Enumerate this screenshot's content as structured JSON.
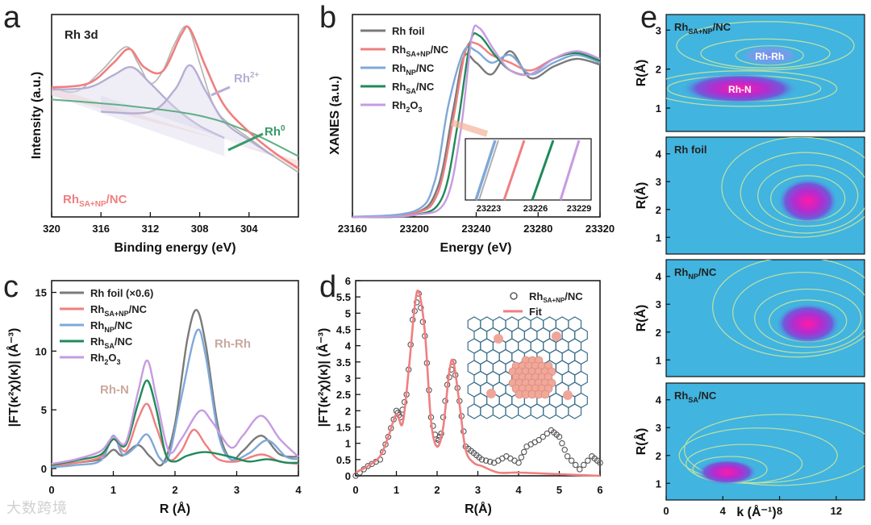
{
  "watermark": "大数跨境",
  "colors": {
    "gray": "#7a7a7a",
    "red": "#ef7f7f",
    "blue": "#7fa8d8",
    "green": "#1f8a5a",
    "purple": "#c79be0",
    "xpsRaw": "#b3b3b3",
    "xpsFit": "#ef7f7f",
    "rh3plus": "#b6aed2",
    "rh0": "#3a9a6a",
    "contourBg": "#41b4e0"
  },
  "panels": {
    "a": {
      "letter": "a",
      "label": "Rh 3d",
      "sample": "Rh",
      "sample_sub": "SA+NP",
      "sample_tail": "/NC",
      "ann_rh3": "Rh",
      "ann_rh3_sup": "2+",
      "ann_rh0": "Rh",
      "ann_rh0_sup": "0"
    },
    "b": {
      "letter": "b",
      "inset_ticks": [
        "23223",
        "23226",
        "23229"
      ]
    },
    "c": {
      "letter": "c",
      "ann_rhrh": "Rh-Rh",
      "ann_rhn": "Rh-N"
    },
    "d": {
      "letter": "d",
      "legend": [
        {
          "main": "Rh",
          "sub": "SA+NP",
          "tail": "/NC"
        },
        {
          "main": "Fit",
          "sub": "",
          "tail": ""
        }
      ]
    },
    "e": {
      "letter": "e",
      "maps": [
        {
          "title_main": "Rh",
          "title_sub": "SA+NP",
          "title_tail": "/NC",
          "labels": [
            "Rh-Rh",
            "Rh-N"
          ]
        },
        {
          "title_main": "Rh foil",
          "title_sub": "",
          "title_tail": "",
          "labels": []
        },
        {
          "title_main": "Rh",
          "title_sub": "NP",
          "title_tail": "/NC",
          "labels": []
        },
        {
          "title_main": "Rh",
          "title_sub": "SA",
          "title_tail": "/NC",
          "labels": []
        }
      ],
      "ylabel": "R(Å)",
      "xlabel": "k (Å⁻¹)",
      "xticks": [
        0,
        4,
        8,
        12
      ]
    }
  },
  "chart_data": [
    {
      "id": "a",
      "type": "line",
      "title": "Rh 3d",
      "xlabel": "Binding energy (eV)",
      "ylabel": "Intensity (a.u.)",
      "xlim": [
        320,
        300
      ],
      "xticks": [
        320,
        316,
        312,
        308,
        304
      ],
      "series": [
        {
          "name": "Rh 3d",
          "x": [
            320,
            318,
            316,
            314,
            313,
            312,
            311,
            310,
            309,
            308,
            307,
            306,
            304,
            302,
            300
          ],
          "y": [
            0.64,
            0.62,
            0.72,
            0.84,
            0.76,
            0.66,
            0.72,
            0.86,
            0.94,
            0.76,
            0.57,
            0.48,
            0.39,
            0.3,
            0.22
          ]
        },
        {
          "name": "Rh",
          "x": [
            320,
            317,
            315,
            313.5,
            312,
            310,
            308,
            306
          ],
          "y": [
            0.63,
            0.64,
            0.7,
            0.74,
            0.66,
            0.54,
            0.45,
            0.39
          ]
        },
        {
          "name": "Rh",
          "x": [
            316,
            312,
            310,
            308.8,
            307.5,
            306,
            304,
            302
          ],
          "y": [
            0.52,
            0.52,
            0.63,
            0.75,
            0.62,
            0.47,
            0.38,
            0.3
          ]
        }
      ]
    },
    {
      "id": "b",
      "type": "line",
      "xlabel": "Energy (eV)",
      "ylabel": "XANES (a.u.)",
      "xlim": [
        23160,
        23320
      ],
      "xticks": [
        23160,
        23200,
        23240,
        23280,
        23320
      ],
      "series": [
        {
          "name": "Rh foil",
          "x": [
            23160,
            23200,
            23215,
            23225,
            23232,
            23240,
            23250,
            23262,
            23275,
            23290,
            23305,
            23320
          ],
          "y": [
            0.0,
            0.02,
            0.15,
            0.55,
            0.83,
            0.8,
            0.74,
            0.86,
            0.72,
            0.78,
            0.82,
            0.79
          ]
        },
        {
          "name": "Rh",
          "x": [
            23160,
            23200,
            23215,
            23225,
            23233,
            23240,
            23250,
            23262,
            23275,
            23290,
            23305,
            23320
          ],
          "y": [
            0.0,
            0.02,
            0.12,
            0.5,
            0.86,
            0.9,
            0.84,
            0.8,
            0.76,
            0.82,
            0.85,
            0.8
          ]
        },
        {
          "name": "Rh",
          "x": [
            23160,
            23200,
            23213,
            23222,
            23232,
            23240,
            23250,
            23262,
            23275,
            23290,
            23305,
            23320
          ],
          "y": [
            0.0,
            0.03,
            0.18,
            0.58,
            0.86,
            0.86,
            0.8,
            0.84,
            0.74,
            0.8,
            0.84,
            0.8
          ]
        },
        {
          "name": "Rh",
          "x": [
            23160,
            23200,
            23218,
            23228,
            23236,
            23242,
            23252,
            23262,
            23275,
            23290,
            23305,
            23320
          ],
          "y": [
            0.0,
            0.01,
            0.1,
            0.48,
            0.9,
            0.94,
            0.84,
            0.76,
            0.74,
            0.82,
            0.85,
            0.81
          ]
        },
        {
          "name": "Rh",
          "x": [
            23160,
            23200,
            23220,
            23230,
            23237,
            23242,
            23252,
            23262,
            23275,
            23290,
            23305,
            23320
          ],
          "y": [
            0.0,
            0.01,
            0.08,
            0.45,
            0.93,
            0.98,
            0.86,
            0.76,
            0.74,
            0.82,
            0.86,
            0.82
          ]
        }
      ]
    },
    {
      "id": "c",
      "type": "line",
      "xlabel": "R (Å)",
      "ylabel": "|FT(κ²χ)(κ)| (Å⁻³)",
      "xlim": [
        0,
        4
      ],
      "ylim": [
        0,
        16
      ],
      "xticks": [
        0,
        1,
        2,
        3,
        4
      ],
      "yticks": [
        0,
        5,
        10,
        15
      ],
      "series": [
        {
          "name": "Rh foil (×0.6)",
          "x": [
            0,
            0.4,
            0.8,
            1.0,
            1.15,
            1.4,
            1.6,
            1.8,
            2.0,
            2.2,
            2.35,
            2.5,
            2.7,
            2.9,
            3.1,
            3.4,
            3.7,
            4.0
          ],
          "y": [
            0.2,
            0.5,
            0.8,
            1.6,
            1.1,
            2.0,
            1.0,
            0.4,
            3.8,
            11.0,
            13.5,
            10.5,
            3.5,
            0.8,
            1.5,
            2.8,
            1.2,
            1.0
          ]
        },
        {
          "name": "Rh",
          "x": [
            0,
            0.4,
            0.8,
            1.0,
            1.2,
            1.4,
            1.55,
            1.7,
            1.9,
            2.1,
            2.3,
            2.5,
            2.7,
            3.0,
            3.4,
            3.7,
            4.0
          ],
          "y": [
            0.2,
            0.5,
            1.0,
            2.5,
            1.5,
            4.2,
            5.5,
            3.5,
            0.8,
            1.5,
            3.3,
            2.0,
            0.8,
            0.6,
            1.2,
            0.6,
            0.4
          ]
        },
        {
          "name": "Rh",
          "x": [
            0,
            0.4,
            0.8,
            1.0,
            1.15,
            1.35,
            1.55,
            1.75,
            1.9,
            2.1,
            2.35,
            2.5,
            2.7,
            2.9,
            3.2,
            3.5,
            3.8,
            4.0
          ],
          "y": [
            0.1,
            0.3,
            0.7,
            2.8,
            1.2,
            1.8,
            2.9,
            0.9,
            1.0,
            6.0,
            11.7,
            9.5,
            3.0,
            0.8,
            1.3,
            2.4,
            1.0,
            0.8
          ]
        },
        {
          "name": "Rh",
          "x": [
            0,
            0.4,
            0.8,
            1.0,
            1.2,
            1.4,
            1.55,
            1.7,
            1.85,
            2.0,
            2.2,
            2.5,
            2.9,
            3.2,
            3.5,
            3.8,
            4.0
          ],
          "y": [
            0.3,
            0.7,
            1.2,
            2.5,
            2.0,
            5.5,
            7.5,
            5.0,
            1.2,
            0.6,
            1.1,
            1.4,
            1.0,
            0.6,
            0.8,
            0.5,
            0.5
          ]
        },
        {
          "name": "Rh",
          "x": [
            0,
            0.4,
            0.8,
            1.0,
            1.2,
            1.4,
            1.55,
            1.7,
            1.9,
            2.1,
            2.4,
            2.6,
            2.9,
            3.1,
            3.4,
            3.7,
            4.0
          ],
          "y": [
            0.4,
            0.8,
            1.5,
            2.7,
            2.2,
            6.5,
            9.2,
            6.0,
            1.5,
            2.5,
            4.9,
            4.0,
            1.8,
            2.8,
            4.5,
            2.5,
            1.0
          ]
        }
      ]
    },
    {
      "id": "d",
      "type": "line",
      "xlabel": "R(Å)",
      "ylabel": "|FT(κ²χ)(κ)| (Å⁻³)",
      "xlim": [
        0,
        6
      ],
      "ylim": [
        0,
        6
      ],
      "xticks": [
        0,
        1,
        2,
        3,
        4,
        5,
        6
      ],
      "yticks": [
        0,
        0.5,
        1,
        1.5,
        2,
        2.5,
        3,
        3.5,
        4,
        4.5,
        5,
        5.5,
        6
      ],
      "series": [
        {
          "name": "Rh",
          "x": [
            0,
            0.3,
            0.6,
            0.8,
            1.0,
            1.1,
            1.25,
            1.4,
            1.55,
            1.7,
            1.85,
            2.0,
            2.1,
            2.25,
            2.4,
            2.55,
            2.7,
            2.9,
            3.1,
            3.4,
            3.7,
            4.0,
            4.2,
            4.5,
            4.8,
            5.0,
            5.2,
            5.5,
            5.8,
            6.0
          ],
          "y": [
            0.0,
            0.3,
            0.5,
            1.2,
            2.0,
            1.8,
            2.5,
            4.8,
            5.6,
            4.3,
            1.8,
            1.0,
            1.3,
            2.8,
            3.5,
            2.3,
            0.9,
            0.7,
            0.5,
            0.4,
            0.6,
            0.4,
            0.9,
            1.1,
            1.4,
            1.2,
            0.6,
            0.2,
            0.6,
            0.4
          ]
        },
        {
          "name": "Fit",
          "x": [
            0,
            0.3,
            0.6,
            0.8,
            1.0,
            1.15,
            1.3,
            1.45,
            1.55,
            1.7,
            1.85,
            2.0,
            2.15,
            2.3,
            2.4,
            2.55,
            2.7,
            2.9,
            3.1,
            3.5,
            4.0,
            5.0,
            6.0
          ],
          "y": [
            0.1,
            0.3,
            0.6,
            1.2,
            1.9,
            1.6,
            3.2,
            5.2,
            5.65,
            4.4,
            1.7,
            0.9,
            1.5,
            3.2,
            3.5,
            2.2,
            0.8,
            0.4,
            0.3,
            0.1,
            0.1,
            0.05,
            0.0
          ]
        }
      ]
    },
    {
      "id": "e",
      "type": "heatmap",
      "xlabel": "k (Å⁻¹)",
      "ylabel": "R(Å)",
      "xlim": [
        0,
        14
      ],
      "xticks": [
        0,
        4,
        8,
        12
      ]
    }
  ]
}
